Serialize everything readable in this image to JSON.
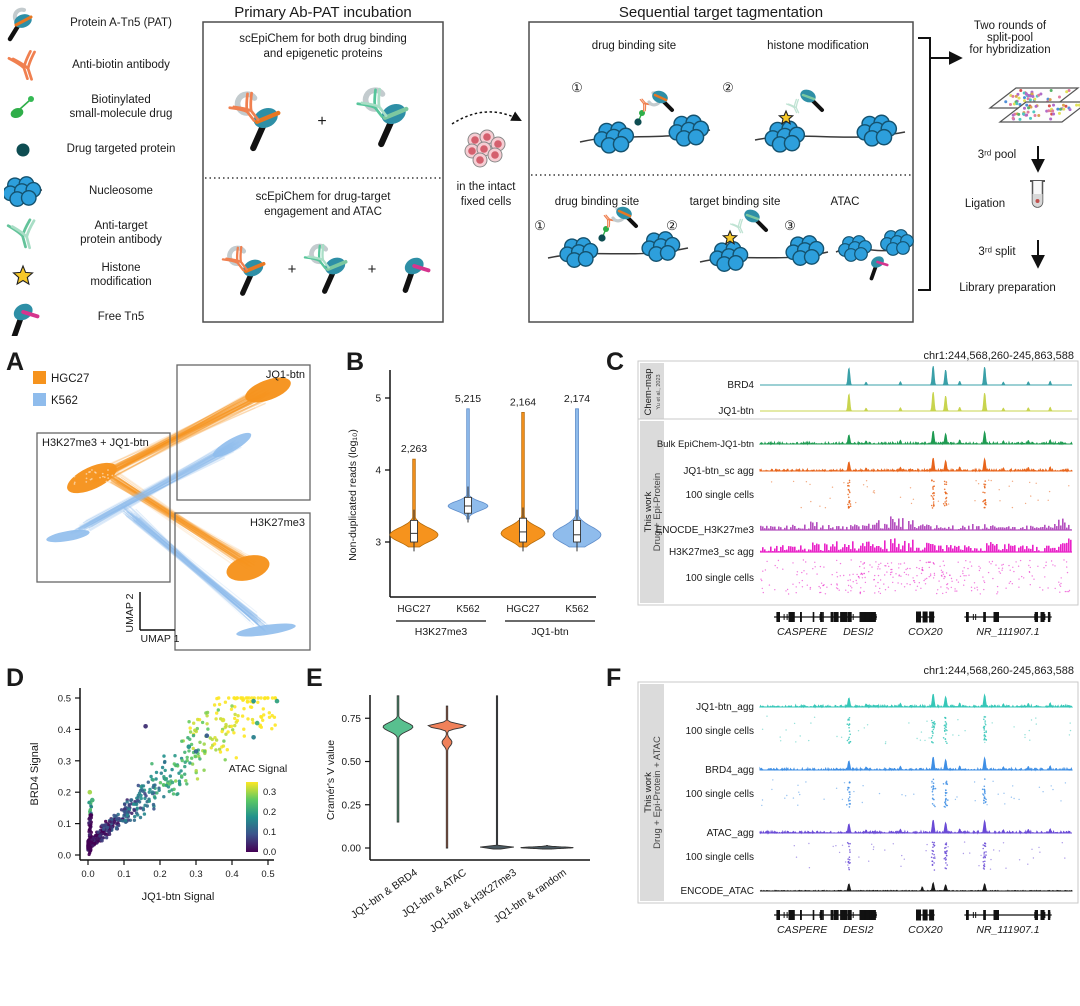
{
  "schematic": {
    "legend": [
      {
        "icon": "pat-icon",
        "label": "Protein A-Tn5 (PAT)"
      },
      {
        "icon": "anti-biotin-antibody-icon",
        "label": "Anti-biotin antibody"
      },
      {
        "icon": "biotinylated-drug-icon",
        "label": "Biotinylated\nsmall-molecule drug"
      },
      {
        "icon": "drug-targeted-protein-icon",
        "label": "Drug targeted protein"
      },
      {
        "icon": "nucleosome-icon",
        "label": "Nucleosome"
      },
      {
        "icon": "anti-target-antibody-icon",
        "label": "Anti-target\nprotein antibody"
      },
      {
        "icon": "histone-modification-icon",
        "label": "Histone\nmodification"
      },
      {
        "icon": "free-tn5-icon",
        "label": "Free Tn5"
      }
    ],
    "primary": {
      "title": "Primary Ab-PAT incubation",
      "top_caption": "scEpiChem for both drug binding\nand epigenetic proteins",
      "bottom_caption": "scEpiChem for drug-target\nengagement and ATAC",
      "plus": "+"
    },
    "intact": {
      "caption": "in the intact\nfixed cells"
    },
    "tagmentation": {
      "title": "Sequential target tagmentation",
      "top_steps": [
        {
          "num": "①",
          "label": "drug binding site"
        },
        {
          "num": "②",
          "label": "histone modification"
        }
      ],
      "bottom_steps": [
        {
          "num": "①",
          "label": "drug binding site"
        },
        {
          "num": "②",
          "label": "target binding site"
        },
        {
          "num": "③",
          "label": "ATAC"
        }
      ]
    },
    "workflow": {
      "split_pool": "Two rounds of\nsplit-pool\nfor hybridization",
      "pool3": "3ʳᵈ pool",
      "ligation": "Ligation",
      "split3": "3ʳᵈ split",
      "library": "Library preparation"
    }
  },
  "panels": {
    "A": {
      "letter": "A"
    },
    "B": {
      "letter": "B"
    },
    "C": {
      "letter": "C"
    },
    "D": {
      "letter": "D"
    },
    "E": {
      "letter": "E"
    },
    "F": {
      "letter": "F"
    }
  },
  "chart_data": [
    {
      "panel": "A",
      "type": "scatter",
      "name": "UMAP embedding of single cells",
      "xlabel": "UMAP 1",
      "ylabel": "UMAP 2",
      "series": [
        {
          "name": "HGC27",
          "color": "#F6931D"
        },
        {
          "name": "K562",
          "color": "#8FBCEC"
        }
      ],
      "cluster_boxes": [
        "JQ1-btn",
        "H3K27me3 + JQ1-btn",
        "H3K27me3"
      ]
    },
    {
      "panel": "B",
      "type": "violin",
      "ylabel": "Non-duplicated reads (log₁₀)",
      "ylim": [
        2.6,
        5.3
      ],
      "yticks": [
        "3",
        "4",
        "5"
      ],
      "categories": [
        "HGC27",
        "K562",
        "HGC27",
        "K562"
      ],
      "group_labels": [
        "H3K27me3",
        "JQ1-btn"
      ],
      "colors": [
        "#F6931D",
        "#8FBCEC",
        "#F6931D",
        "#8FBCEC"
      ],
      "count_labels": [
        "2,263",
        "5,215",
        "2,164",
        "2,174"
      ],
      "violins": [
        {
          "bulges": [
            {
              "c": 3.1,
              "s": 0.14,
              "max": 24
            }
          ],
          "base": 1.3,
          "top": 4.15,
          "bottom": 2.93,
          "box": [
            3.0,
            3.3
          ],
          "median": 3.12
        },
        {
          "bulges": [
            {
              "c": 3.5,
              "s": 0.09,
              "max": 20
            }
          ],
          "base": 1.3,
          "top": 4.85,
          "bottom": 3.32,
          "box": [
            3.4,
            3.62
          ],
          "median": 3.5
        },
        {
          "bulges": [
            {
              "c": 3.12,
              "s": 0.14,
              "max": 22
            }
          ],
          "base": 1.3,
          "top": 4.8,
          "bottom": 2.93,
          "box": [
            3.0,
            3.33
          ],
          "median": 3.14
        },
        {
          "bulges": [
            {
              "c": 3.1,
              "s": 0.16,
              "max": 24
            }
          ],
          "base": 1.5,
          "top": 4.85,
          "bottom": 2.93,
          "box": [
            3.0,
            3.3
          ],
          "median": 3.1
        }
      ]
    },
    {
      "panel": "C",
      "type": "genome-tracks",
      "title": "chr1:244,568,260-245,863,588",
      "groups": [
        {
          "label": "Chem-map",
          "sublabel": "Yu et al., 2023",
          "tracks": [
            {
              "name": "BRD4",
              "color": "#3AA0A8",
              "style": "peaks"
            },
            {
              "name": "JQ1-btn",
              "color": "#C8D44F",
              "style": "peaks"
            }
          ]
        },
        {
          "label": "This work",
          "sublabel": "Drug + Epi-Protein",
          "tracks": [
            {
              "name": "Bulk EpiChem-JQ1-btn",
              "color": "#1F9B52",
              "style": "peaks-noise"
            },
            {
              "name": "JQ1-btn_sc agg",
              "color": "#E8651C",
              "style": "peaks-noise"
            },
            {
              "name": "100 single cells",
              "color": "#E8651C",
              "style": "cells"
            },
            {
              "name": "ENOCDE_H3K27me3",
              "color": "#B44FBE",
              "style": "hills"
            },
            {
              "name": "H3K27me3_sc agg",
              "color": "#E922C8",
              "style": "hills"
            },
            {
              "name": "100 single cells",
              "color": "#E922C8",
              "style": "cells-broad"
            }
          ]
        }
      ],
      "peak_positions": [
        0.285,
        0.555,
        0.595,
        0.72
      ],
      "genes": [
        "CASPERE",
        "DESI2",
        "COX20",
        "NR_111907.1"
      ]
    },
    {
      "panel": "D",
      "type": "scatter",
      "xlabel": "JQ1-btn Signal",
      "ylabel": "BRD4 Signal",
      "xlim": [
        0,
        0.5
      ],
      "ylim": [
        0,
        0.5
      ],
      "xticks": [
        "0.0",
        "0.1",
        "0.2",
        "0.3",
        "0.4",
        "0.5"
      ],
      "yticks": [
        "0.0",
        "0.1",
        "0.2",
        "0.3",
        "0.4",
        "0.5"
      ],
      "colorbar": {
        "label": "ATAC Signal",
        "ticks": [
          "0.3",
          "0.2",
          "0.1",
          "0.0"
        ],
        "colormap": "viridis"
      },
      "description": "positive correlation cloud, dense near origin"
    },
    {
      "panel": "E",
      "type": "violin",
      "ylabel": "Cramér's V value",
      "yticks": [
        "0.00",
        "0.25",
        "0.50",
        "0.75"
      ],
      "categories": [
        "JQ1-btn & BRD4",
        "JQ1-btn & ATAC",
        "JQ1-btn & H3K27me3",
        "JQ1-btn & random"
      ],
      "colors": [
        "#58C08F",
        "#F0815A",
        "#4A5A62",
        "#4A5A62"
      ],
      "violins": [
        {
          "bulges": [
            {
              "c": 0.7,
              "s": 0.035,
              "max": 15
            }
          ],
          "base": 0.8,
          "top": 0.88,
          "bottom": 0.15
        },
        {
          "bulges": [
            {
              "c": 0.705,
              "s": 0.018,
              "max": 19
            },
            {
              "c": 0.61,
              "s": 0.03,
              "max": 5
            }
          ],
          "base": 0.7,
          "top": 0.82,
          "bottom": 0.0
        },
        {
          "bulges": [
            {
              "c": 0.002,
              "s": 0.006,
              "max": 22
            }
          ],
          "base": 0.6,
          "top": 0.88,
          "bottom": -0.006
        },
        {
          "bulges": [
            {
              "c": 0.002,
              "s": 0.006,
              "max": 26
            }
          ],
          "base": 0.0,
          "top": 0.015,
          "bottom": -0.006
        }
      ]
    },
    {
      "panel": "F",
      "type": "genome-tracks",
      "title": "chr1:244,568,260-245,863,588",
      "groups": [
        {
          "label": "This work",
          "sublabel": "Drug + Epi-Protein + ATAC",
          "tracks": [
            {
              "name": "JQ1-btn_agg",
              "color": "#36C7B8",
              "style": "peaks-noise"
            },
            {
              "name": "100 single cells",
              "color": "#36C7B8",
              "style": "cells"
            },
            {
              "name": "BRD4_agg",
              "color": "#3F8FE5",
              "style": "peaks-noise"
            },
            {
              "name": "100 single cells",
              "color": "#3F8FE5",
              "style": "cells"
            },
            {
              "name": "ATAC_agg",
              "color": "#6A4BD6",
              "style": "peaks-noise"
            },
            {
              "name": "100 single cells",
              "color": "#6A4BD6",
              "style": "cells"
            },
            {
              "name": "ENCODE_ATAC",
              "color": "#1A1A1A",
              "style": "peaks-small"
            }
          ]
        }
      ],
      "peak_positions": [
        0.285,
        0.555,
        0.595,
        0.72
      ],
      "genes": [
        "CASPERE",
        "DESI2",
        "COX20",
        "NR_111907.1"
      ]
    }
  ]
}
